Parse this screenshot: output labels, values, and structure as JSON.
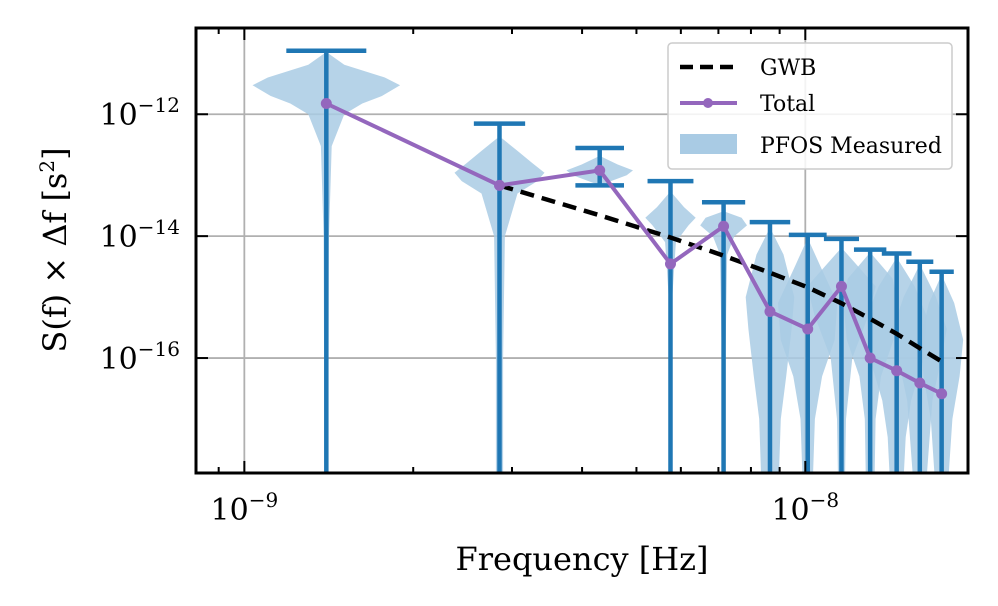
{
  "chart_data": {
    "type": "line",
    "xscale": "log",
    "yscale": "log",
    "xlim": [
      8.2e-10,
      1.95e-08
    ],
    "ylim": [
      1.3e-18,
      2.6e-11
    ],
    "xlabel": "Frequency [Hz]",
    "ylabel": {
      "text": "S(f) × Δf [s²]",
      "base": "S(f) × Δf [s",
      "exp": "2",
      "end": "]"
    },
    "xticks": [
      {
        "value": 1e-09,
        "base": "10",
        "exp": "−9"
      },
      {
        "value": 1e-08,
        "base": "10",
        "exp": "−8"
      }
    ],
    "yticks": [
      {
        "value": 1e-12,
        "base": "10",
        "exp": "−12"
      },
      {
        "value": 1e-14,
        "base": "10",
        "exp": "−14"
      },
      {
        "value": 1e-16,
        "base": "10",
        "exp": "−16"
      }
    ],
    "grid": true,
    "legend": {
      "position": "top-right",
      "entries": [
        "GWB",
        "Total",
        "PFOS Measured"
      ]
    },
    "frequencies": [
      1.4e-09,
      2.85e-09,
      4.3e-09,
      5.75e-09,
      7.15e-09,
      8.65e-09,
      1.01e-08,
      1.16e-08,
      1.305e-08,
      1.455e-08,
      1.6e-08,
      1.75e-08
    ],
    "series": [
      {
        "name": "GWB",
        "style": "dashed",
        "color": "#000000",
        "x": [
          2.85e-09,
          4.3e-09,
          5.75e-09,
          7.15e-09,
          8.65e-09,
          1.01e-08,
          1.16e-08,
          1.305e-08,
          1.455e-08,
          1.6e-08,
          1.75e-08
        ],
        "values": [
          6.8e-14,
          2.2e-14,
          9.5e-15,
          4.8e-15,
          2.5e-15,
          1.45e-15,
          7.9e-16,
          4.4e-16,
          2.5e-16,
          1.45e-16,
          8.8e-17
        ]
      },
      {
        "name": "Total",
        "style": "solid-marker",
        "color": "#9467bd",
        "x": [
          1.4e-09,
          2.85e-09,
          4.3e-09,
          5.75e-09,
          7.15e-09,
          8.65e-09,
          1.01e-08,
          1.16e-08,
          1.305e-08,
          1.455e-08,
          1.6e-08,
          1.75e-08
        ],
        "values": [
          1.5e-12,
          6.8e-14,
          1.2e-13,
          3.5e-15,
          1.45e-14,
          5.8e-16,
          3e-16,
          1.5e-15,
          1e-16,
          6.2e-17,
          3.9e-17,
          2.6e-17
        ]
      }
    ],
    "error_bars": {
      "name": "PFOS Measured",
      "color": "#1f77b4",
      "x": [
        1.4e-09,
        2.85e-09,
        4.3e-09,
        5.75e-09,
        7.15e-09,
        8.65e-09,
        1.01e-08,
        1.16e-08,
        1.305e-08,
        1.455e-08,
        1.6e-08,
        1.75e-08
      ],
      "upper": [
        1.1e-11,
        7e-13,
        2.8e-13,
        8e-14,
        3.6e-14,
        1.7e-14,
        1.05e-14,
        9e-15,
        6e-15,
        5.2e-15,
        3.8e-15,
        2.6e-15
      ],
      "lower": [
        1.3e-18,
        1.3e-18,
        6.8e-14,
        1.3e-18,
        1.3e-18,
        1.3e-18,
        1.3e-18,
        1.3e-18,
        1.3e-18,
        1.3e-18,
        1.3e-18,
        1.3e-18
      ]
    },
    "violins": {
      "name": "PFOS Measured",
      "color": "#a9cbe4",
      "items": [
        {
          "x": 1.4e-09,
          "profile": [
            [
              1e-11,
              0.02
            ],
            [
              6.5e-12,
              0.2
            ],
            [
              4e-12,
              0.65
            ],
            [
              3e-12,
              0.82
            ],
            [
              2e-12,
              0.62
            ],
            [
              1.5e-12,
              0.4
            ],
            [
              1e-12,
              0.2
            ],
            [
              3e-13,
              0.06
            ],
            [
              1e-14,
              0.03
            ],
            [
              1.3e-18,
              0.02
            ]
          ]
        },
        {
          "x": 2.85e-09,
          "profile": [
            [
              4e-13,
              0.03
            ],
            [
              2.5e-13,
              0.2
            ],
            [
              1.6e-13,
              0.36
            ],
            [
              1.1e-13,
              0.5
            ],
            [
              8e-14,
              0.42
            ],
            [
              5e-14,
              0.2
            ],
            [
              1e-14,
              0.06
            ],
            [
              1e-16,
              0.04
            ],
            [
              1e-17,
              0.04
            ],
            [
              1.3e-18,
              0.04
            ]
          ]
        },
        {
          "x": 4.3e-09,
          "profile": [
            [
              2e-13,
              0.02
            ],
            [
              1.5e-13,
              0.2
            ],
            [
              1.2e-13,
              0.37
            ],
            [
              1e-13,
              0.3
            ],
            [
              7e-14,
              0.02
            ]
          ]
        },
        {
          "x": 5.75e-09,
          "profile": [
            [
              5e-14,
              0.02
            ],
            [
              3e-14,
              0.15
            ],
            [
              2e-14,
              0.28
            ],
            [
              1.5e-14,
              0.2
            ],
            [
              8e-15,
              0.06
            ],
            [
              1e-15,
              0.02
            ],
            [
              1.3e-18,
              0.01
            ]
          ]
        },
        {
          "x": 7.15e-09,
          "profile": [
            [
              2.5e-14,
              0.02
            ],
            [
              2e-14,
              0.2
            ],
            [
              1.5e-14,
              0.26
            ],
            [
              1e-14,
              0.12
            ],
            [
              5e-15,
              0.04
            ],
            [
              1e-16,
              0.02
            ],
            [
              1.3e-18,
              0.015
            ]
          ]
        },
        {
          "x": 8.65e-09,
          "profile": [
            [
              1.2e-14,
              0.02
            ],
            [
              5e-15,
              0.15
            ],
            [
              1e-15,
              0.27
            ],
            [
              3e-16,
              0.24
            ],
            [
              5e-17,
              0.18
            ],
            [
              1e-17,
              0.12
            ],
            [
              1.3e-18,
              0.1
            ]
          ]
        },
        {
          "x": 1.01e-08,
          "profile": [
            [
              8e-15,
              0.02
            ],
            [
              3e-15,
              0.15
            ],
            [
              8e-16,
              0.33
            ],
            [
              2e-16,
              0.3
            ],
            [
              5e-17,
              0.16
            ],
            [
              1e-17,
              0.08
            ],
            [
              1.3e-18,
              0.06
            ]
          ]
        },
        {
          "x": 1.16e-08,
          "profile": [
            [
              6e-15,
              0.02
            ],
            [
              3e-15,
              0.2
            ],
            [
              1.5e-15,
              0.38
            ],
            [
              5e-16,
              0.3
            ],
            [
              1e-16,
              0.12
            ],
            [
              1e-17,
              0.05
            ],
            [
              1.3e-18,
              0.04
            ]
          ]
        },
        {
          "x": 1.305e-08,
          "profile": [
            [
              5e-15,
              0.02
            ],
            [
              2e-15,
              0.25
            ],
            [
              8e-16,
              0.3
            ],
            [
              2e-16,
              0.26
            ],
            [
              5e-17,
              0.12
            ],
            [
              1e-17,
              0.06
            ],
            [
              1.3e-18,
              0.05
            ]
          ]
        },
        {
          "x": 1.455e-08,
          "profile": [
            [
              4e-15,
              0.02
            ],
            [
              1.5e-15,
              0.2
            ],
            [
              5e-16,
              0.33
            ],
            [
              1e-16,
              0.3
            ],
            [
              2e-17,
              0.16
            ],
            [
              5e-18,
              0.1
            ],
            [
              1.3e-18,
              0.08
            ]
          ]
        },
        {
          "x": 1.6e-08,
          "profile": [
            [
              3e-15,
              0.02
            ],
            [
              1e-15,
              0.18
            ],
            [
              3e-16,
              0.3
            ],
            [
              1e-16,
              0.24
            ],
            [
              2e-17,
              0.14
            ],
            [
              1.3e-18,
              0.08
            ]
          ]
        },
        {
          "x": 1.75e-08,
          "profile": [
            [
              2e-15,
              0.02
            ],
            [
              8e-16,
              0.14
            ],
            [
              2e-16,
              0.24
            ],
            [
              5e-17,
              0.2
            ],
            [
              1e-17,
              0.12
            ],
            [
              1.3e-18,
              0.08
            ]
          ]
        }
      ]
    }
  }
}
